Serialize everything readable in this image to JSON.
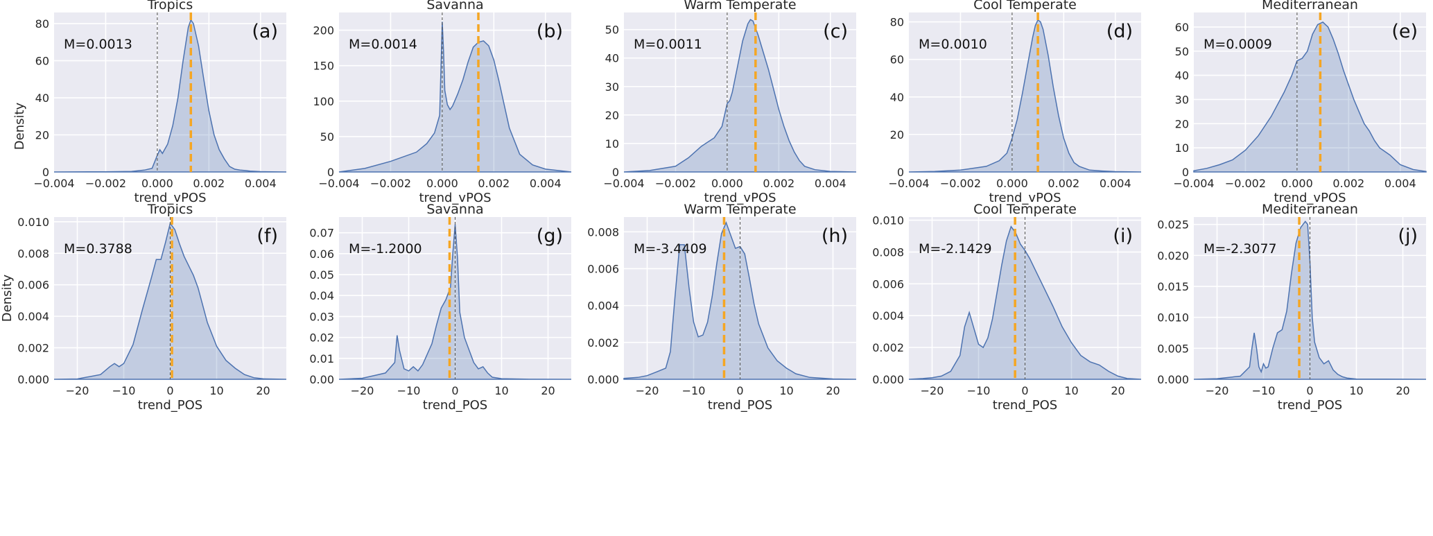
{
  "figure": {
    "density_label": "Density",
    "colors": {
      "background": "#eaeaf2",
      "grid": "#ffffff",
      "kde": "#4c72b0",
      "median": "#f5a623",
      "zero": "#555555"
    }
  },
  "chart_data": [
    {
      "type": "area",
      "id": "a",
      "panel_label": "(a)",
      "title": "Tropics",
      "xlabel": "trend_vPOS",
      "ylabel": "Density",
      "median_text": "M=0.0013",
      "median": 0.0013,
      "xlim": [
        -0.004,
        0.005
      ],
      "ylim": [
        0,
        86
      ],
      "xticks": [
        -0.004,
        -0.002,
        0.0,
        0.002,
        0.004
      ],
      "xtick_labels": [
        "−0.004",
        "−0.002",
        "0.000",
        "0.002",
        "0.004"
      ],
      "yticks": [
        0,
        20,
        40,
        60,
        80
      ],
      "ytick_labels": [
        "0",
        "20",
        "40",
        "60",
        "80"
      ],
      "x": [
        -0.004,
        -0.002,
        -0.001,
        -0.0005,
        -0.0002,
        0.0,
        0.0001,
        0.0002,
        0.0004,
        0.0006,
        0.0008,
        0.001,
        0.0012,
        0.0013,
        0.0014,
        0.0016,
        0.0018,
        0.002,
        0.0022,
        0.0024,
        0.0026,
        0.0028,
        0.003,
        0.0032,
        0.0034,
        0.0036,
        0.004,
        0.005
      ],
      "y": [
        0,
        0.1,
        0.3,
        1,
        2,
        9,
        12,
        10,
        15,
        25,
        40,
        60,
        78,
        82,
        80,
        68,
        50,
        33,
        20,
        12,
        7,
        3,
        1.5,
        1,
        0.8,
        0.5,
        0.2,
        0
      ]
    },
    {
      "type": "area",
      "id": "b",
      "panel_label": "(b)",
      "title": "Savanna",
      "xlabel": "trend_vPOS",
      "ylabel": "",
      "median_text": "M=0.0014",
      "median": 0.0014,
      "xlim": [
        -0.004,
        0.005
      ],
      "ylim": [
        0,
        225
      ],
      "xticks": [
        -0.004,
        -0.002,
        0.0,
        0.002,
        0.004
      ],
      "xtick_labels": [
        "−0.004",
        "−0.002",
        "0.000",
        "0.002",
        "0.004"
      ],
      "yticks": [
        0,
        50,
        100,
        150,
        200
      ],
      "ytick_labels": [
        "0",
        "50",
        "100",
        "150",
        "200"
      ],
      "x": [
        -0.004,
        -0.003,
        -0.002,
        -0.001,
        -0.0006,
        -0.0003,
        -0.0001,
        0.0,
        5e-05,
        0.0001,
        0.0002,
        0.0003,
        0.0004,
        0.0006,
        0.0008,
        0.001,
        0.0012,
        0.0014,
        0.0016,
        0.0018,
        0.002,
        0.0022,
        0.0024,
        0.0026,
        0.003,
        0.0035,
        0.004,
        0.005
      ],
      "y": [
        0,
        5,
        15,
        28,
        40,
        55,
        80,
        212,
        170,
        115,
        95,
        88,
        93,
        110,
        130,
        155,
        176,
        183,
        185,
        178,
        158,
        128,
        95,
        62,
        25,
        10,
        4,
        0
      ]
    },
    {
      "type": "area",
      "id": "c",
      "panel_label": "(c)",
      "title": "Warm Temperate",
      "xlabel": "trend_vPOS",
      "ylabel": "",
      "median_text": "M=0.0011",
      "median": 0.0011,
      "xlim": [
        -0.004,
        0.005
      ],
      "ylim": [
        0,
        56
      ],
      "xticks": [
        -0.004,
        -0.002,
        0.0,
        0.002,
        0.004
      ],
      "xtick_labels": [
        "−0.004",
        "−0.002",
        "0.000",
        "0.002",
        "0.004"
      ],
      "yticks": [
        0,
        10,
        20,
        30,
        40,
        50
      ],
      "ytick_labels": [
        "0",
        "10",
        "20",
        "30",
        "40",
        "50"
      ],
      "x": [
        -0.004,
        -0.003,
        -0.002,
        -0.0015,
        -0.001,
        -0.0005,
        -0.0002,
        0.0,
        0.0001,
        0.0002,
        0.0004,
        0.0006,
        0.0008,
        0.0009,
        0.001,
        0.0012,
        0.0014,
        0.0016,
        0.0018,
        0.002,
        0.0022,
        0.0024,
        0.0026,
        0.0028,
        0.003,
        0.0034,
        0.004,
        0.005
      ],
      "y": [
        0,
        0.5,
        2,
        5,
        9,
        12,
        16,
        24,
        25,
        28,
        37,
        46,
        52,
        53.5,
        53,
        48,
        42,
        36,
        29,
        22,
        16,
        11,
        7,
        4,
        2,
        0.8,
        0.2,
        0
      ]
    },
    {
      "type": "area",
      "id": "d",
      "panel_label": "(d)",
      "title": "Cool Temperate",
      "xlabel": "trend_vPOS",
      "ylabel": "",
      "median_text": "M=0.0010",
      "median": 0.001,
      "xlim": [
        -0.004,
        0.005
      ],
      "ylim": [
        0,
        85
      ],
      "xticks": [
        -0.004,
        -0.002,
        0.0,
        0.002,
        0.004
      ],
      "xtick_labels": [
        "−0.004",
        "−0.002",
        "0.000",
        "0.002",
        "0.004"
      ],
      "yticks": [
        0,
        20,
        40,
        60,
        80
      ],
      "ytick_labels": [
        "0",
        "20",
        "40",
        "60",
        "80"
      ],
      "x": [
        -0.004,
        -0.003,
        -0.002,
        -0.001,
        -0.0005,
        -0.0002,
        0.0,
        0.0002,
        0.0004,
        0.0006,
        0.0008,
        0.0009,
        0.001,
        0.0011,
        0.0012,
        0.0014,
        0.0016,
        0.0018,
        0.002,
        0.0022,
        0.0024,
        0.0026,
        0.003,
        0.0035,
        0.004,
        0.005
      ],
      "y": [
        0,
        0.3,
        1,
        3,
        6,
        10,
        18,
        28,
        42,
        57,
        72,
        78,
        81,
        80,
        76,
        62,
        45,
        30,
        18,
        10,
        5,
        3,
        1,
        0.5,
        0.2,
        0
      ]
    },
    {
      "type": "area",
      "id": "e",
      "panel_label": "(e)",
      "title": "Mediterranean",
      "xlabel": "trend_vPOS",
      "ylabel": "",
      "median_text": "M=0.0009",
      "median": 0.0009,
      "xlim": [
        -0.004,
        0.005
      ],
      "ylim": [
        0,
        66
      ],
      "xticks": [
        -0.004,
        -0.002,
        0.0,
        0.002,
        0.004
      ],
      "xtick_labels": [
        "−0.004",
        "−0.002",
        "0.000",
        "0.002",
        "0.004"
      ],
      "yticks": [
        0,
        10,
        20,
        30,
        40,
        50,
        60
      ],
      "ytick_labels": [
        "0",
        "10",
        "20",
        "30",
        "40",
        "50",
        "60"
      ],
      "x": [
        -0.004,
        -0.0035,
        -0.003,
        -0.0025,
        -0.002,
        -0.0015,
        -0.001,
        -0.0005,
        -0.0002,
        0.0,
        0.0002,
        0.0004,
        0.0006,
        0.0008,
        0.001,
        0.0012,
        0.0014,
        0.0016,
        0.0018,
        0.002,
        0.0022,
        0.0024,
        0.0026,
        0.0028,
        0.003,
        0.0032,
        0.0034,
        0.0036,
        0.0038,
        0.004,
        0.0045,
        0.005
      ],
      "y": [
        0.5,
        1.5,
        3,
        5,
        9,
        15,
        23,
        33,
        40,
        46,
        47,
        50,
        57,
        61,
        62,
        60,
        55,
        49,
        42,
        36,
        30,
        25,
        20,
        17,
        13,
        10,
        8.5,
        7,
        5,
        3,
        1,
        0.2
      ]
    },
    {
      "type": "area",
      "id": "f",
      "panel_label": "(f)",
      "title": "Tropics",
      "xlabel": "trend_POS",
      "ylabel": "Density",
      "median_text": "M=0.3788",
      "median": 0.3788,
      "xlim": [
        -25,
        25
      ],
      "ylim": [
        0,
        0.0103
      ],
      "xticks": [
        -20,
        -10,
        0,
        10,
        20
      ],
      "xtick_labels": [
        "−20",
        "−10",
        "0",
        "10",
        "20"
      ],
      "yticks": [
        0,
        0.002,
        0.004,
        0.006,
        0.008,
        0.01
      ],
      "ytick_labels": [
        "0.000",
        "0.002",
        "0.004",
        "0.006",
        "0.008",
        "0.010"
      ],
      "x": [
        -25,
        -20,
        -15,
        -13,
        -12,
        -11,
        -10,
        -8,
        -6,
        -4,
        -3,
        -2,
        -1,
        0,
        1,
        2,
        3,
        4,
        5,
        6,
        8,
        10,
        12,
        14,
        16,
        18,
        20,
        25
      ],
      "y": [
        0,
        2e-05,
        0.0003,
        0.0008,
        0.001,
        0.0008,
        0.001,
        0.0022,
        0.0044,
        0.0065,
        0.0076,
        0.0076,
        0.0087,
        0.0099,
        0.0095,
        0.0086,
        0.0078,
        0.0072,
        0.0066,
        0.0058,
        0.0036,
        0.0021,
        0.0012,
        0.0007,
        0.0003,
        0.0001,
        3e-05,
        0
      ]
    },
    {
      "type": "area",
      "id": "g",
      "panel_label": "(g)",
      "title": "Savanna",
      "xlabel": "trend_POS",
      "ylabel": "",
      "median_text": "M=-1.2000",
      "median": -1.2,
      "xlim": [
        -25,
        25
      ],
      "ylim": [
        0,
        0.0775
      ],
      "xticks": [
        -20,
        -10,
        0,
        10,
        20
      ],
      "xtick_labels": [
        "−20",
        "−10",
        "0",
        "10",
        "20"
      ],
      "yticks": [
        0,
        0.01,
        0.02,
        0.03,
        0.04,
        0.05,
        0.06,
        0.07
      ],
      "ytick_labels": [
        "0.00",
        "0.01",
        "0.02",
        "0.03",
        "0.04",
        "0.05",
        "0.06",
        "0.07"
      ],
      "x": [
        -25,
        -20,
        -17,
        -15,
        -13,
        -12.5,
        -12,
        -11,
        -10,
        -9,
        -8,
        -7,
        -6,
        -5,
        -4,
        -3,
        -2,
        -1,
        -0.5,
        0,
        0.5,
        1,
        2,
        3,
        4,
        5,
        6,
        7,
        8,
        10,
        15,
        25
      ],
      "y": [
        0,
        0.0005,
        0.002,
        0.003,
        0.008,
        0.021,
        0.014,
        0.005,
        0.004,
        0.006,
        0.004,
        0.007,
        0.012,
        0.017,
        0.026,
        0.034,
        0.038,
        0.044,
        0.06,
        0.074,
        0.058,
        0.032,
        0.02,
        0.014,
        0.008,
        0.005,
        0.006,
        0.003,
        0.001,
        0.0003,
        5e-05,
        0
      ]
    },
    {
      "type": "area",
      "id": "h",
      "panel_label": "(h)",
      "title": "Warm Temperate",
      "xlabel": "trend_POS",
      "ylabel": "",
      "median_text": "M=-3.4409",
      "median": -3.4409,
      "xlim": [
        -25,
        25
      ],
      "ylim": [
        0,
        0.0088
      ],
      "xticks": [
        -20,
        -10,
        0,
        10,
        20
      ],
      "xtick_labels": [
        "−20",
        "−10",
        "0",
        "10",
        "20"
      ],
      "yticks": [
        0,
        0.002,
        0.004,
        0.006,
        0.008
      ],
      "ytick_labels": [
        "0.000",
        "0.002",
        "0.004",
        "0.006",
        "0.008"
      ],
      "x": [
        -25,
        -22,
        -20,
        -18,
        -17,
        -16,
        -15,
        -14,
        -13,
        -12,
        -11,
        -10,
        -9,
        -8,
        -7,
        -6,
        -5,
        -4,
        -3,
        -2,
        -1,
        0,
        1,
        2,
        3,
        4,
        6,
        8,
        10,
        12,
        15,
        20,
        25
      ],
      "y": [
        5e-05,
        0.0001,
        0.0002,
        0.0004,
        0.0005,
        0.0006,
        0.0015,
        0.0045,
        0.0073,
        0.0073,
        0.005,
        0.0031,
        0.0023,
        0.0024,
        0.0031,
        0.0045,
        0.0063,
        0.0079,
        0.0085,
        0.0078,
        0.0071,
        0.0072,
        0.0068,
        0.0055,
        0.0041,
        0.003,
        0.0017,
        0.001,
        0.0006,
        0.0003,
        0.0001,
        2e-05,
        0
      ]
    },
    {
      "type": "area",
      "id": "i",
      "panel_label": "(i)",
      "title": "Cool Temperate",
      "xlabel": "trend_POS",
      "ylabel": "",
      "median_text": "M=-2.1429",
      "median": -2.1429,
      "xlim": [
        -25,
        25
      ],
      "ylim": [
        0,
        0.0102
      ],
      "xticks": [
        -20,
        -10,
        0,
        10,
        20
      ],
      "xtick_labels": [
        "−20",
        "−10",
        "0",
        "10",
        "20"
      ],
      "yticks": [
        0,
        0.002,
        0.004,
        0.006,
        0.008,
        0.01
      ],
      "ytick_labels": [
        "0.000",
        "0.002",
        "0.004",
        "0.006",
        "0.008",
        "0.010"
      ],
      "x": [
        -25,
        -22,
        -20,
        -18,
        -16,
        -14,
        -13,
        -12,
        -11,
        -10,
        -9,
        -8,
        -7,
        -6,
        -5,
        -4,
        -3,
        -2,
        -1,
        0,
        1,
        2,
        4,
        6,
        8,
        10,
        12,
        14,
        16,
        18,
        20,
        22,
        25
      ],
      "y": [
        0,
        5e-05,
        0.0001,
        0.0002,
        0.0005,
        0.0015,
        0.0033,
        0.0042,
        0.0032,
        0.0022,
        0.002,
        0.0026,
        0.0038,
        0.0055,
        0.0072,
        0.0087,
        0.0096,
        0.0092,
        0.0085,
        0.0081,
        0.0076,
        0.007,
        0.0058,
        0.0046,
        0.0033,
        0.0023,
        0.0015,
        0.0011,
        0.0009,
        0.0005,
        0.0002,
        5e-05,
        0
      ]
    },
    {
      "type": "area",
      "id": "j",
      "panel_label": "(j)",
      "title": "Mediterranean",
      "xlabel": "trend_POS",
      "ylabel": "",
      "median_text": "M=-2.3077",
      "median": -2.3077,
      "xlim": [
        -25,
        25
      ],
      "ylim": [
        0,
        0.0262
      ],
      "xticks": [
        -20,
        -10,
        0,
        10,
        20
      ],
      "xtick_labels": [
        "−20",
        "−10",
        "0",
        "10",
        "20"
      ],
      "yticks": [
        0,
        0.005,
        0.01,
        0.015,
        0.02,
        0.025
      ],
      "ytick_labels": [
        "0.000",
        "0.005",
        "0.010",
        "0.015",
        "0.020",
        "0.025"
      ],
      "x": [
        -25,
        -20,
        -15,
        -13,
        -12.5,
        -12,
        -11.5,
        -11,
        -10.5,
        -10,
        -9.5,
        -9,
        -8,
        -7,
        -6,
        -5,
        -4,
        -3,
        -2,
        -1,
        -0.5,
        0,
        0.5,
        1,
        2,
        3,
        4,
        5,
        6,
        7,
        8,
        10,
        25
      ],
      "y": [
        0,
        0.0001,
        0.0005,
        0.002,
        0.005,
        0.0075,
        0.005,
        0.002,
        0.0012,
        0.0025,
        0.0018,
        0.002,
        0.005,
        0.0075,
        0.008,
        0.011,
        0.017,
        0.022,
        0.0245,
        0.0255,
        0.025,
        0.019,
        0.01,
        0.006,
        0.0035,
        0.0025,
        0.003,
        0.0015,
        0.0008,
        0.0004,
        0.0002,
        5e-05,
        0
      ]
    }
  ]
}
